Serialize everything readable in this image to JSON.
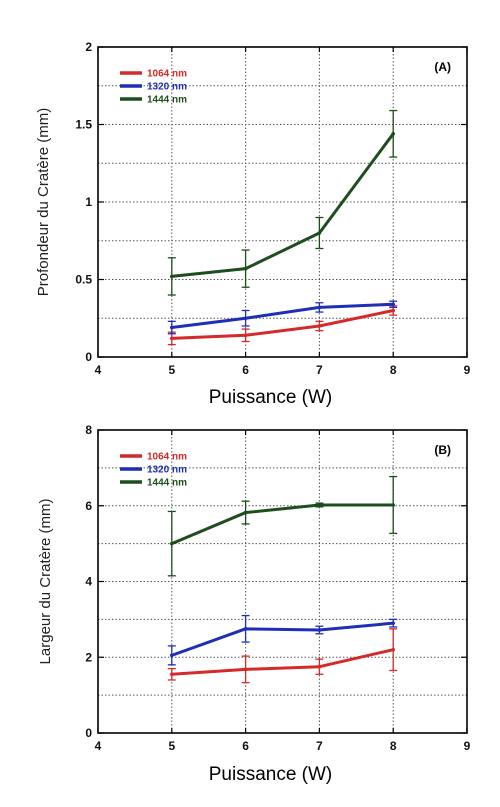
{
  "chart_data": [
    {
      "type": "line",
      "panel_label": "(A)",
      "xlabel": "Puissance (W)",
      "ylabel": "Profondeur du Cratère (mm)",
      "xlim": [
        4,
        9
      ],
      "ylim": [
        0,
        2
      ],
      "x_ticks": [
        "4",
        "5",
        "6",
        "7",
        "8",
        "9"
      ],
      "y_ticks": [
        "0",
        "0.5",
        "1",
        "1.5",
        "2"
      ],
      "grid": true,
      "legend_position": "top-left",
      "x": [
        5,
        6,
        7,
        8
      ],
      "series": [
        {
          "name": "1064 nm",
          "color": "#d42a2a",
          "values": [
            0.12,
            0.14,
            0.2,
            0.3
          ],
          "error": [
            0.04,
            0.04,
            0.03,
            0.03
          ]
        },
        {
          "name": "1320 nm",
          "color": "#1f2fb5",
          "values": [
            0.19,
            0.25,
            0.32,
            0.34
          ],
          "error": [
            0.04,
            0.05,
            0.03,
            0.02
          ]
        },
        {
          "name": "1444 nm",
          "color": "#1e4d1e",
          "values": [
            0.52,
            0.57,
            0.8,
            1.44
          ],
          "error": [
            0.12,
            0.12,
            0.1,
            0.15
          ]
        }
      ]
    },
    {
      "type": "line",
      "panel_label": "(B)",
      "xlabel": "Puissance (W)",
      "ylabel": "Largeur du Cratère (mm)",
      "xlim": [
        4,
        9
      ],
      "ylim": [
        0,
        8
      ],
      "x_ticks": [
        "4",
        "5",
        "6",
        "7",
        "8",
        "9"
      ],
      "y_ticks": [
        "0",
        "2",
        "4",
        "6",
        "8"
      ],
      "grid": true,
      "legend_position": "top-left",
      "x": [
        5,
        6,
        7,
        8
      ],
      "series": [
        {
          "name": "1064 nm",
          "color": "#d42a2a",
          "values": [
            1.55,
            1.68,
            1.75,
            2.2
          ],
          "error": [
            0.15,
            0.35,
            0.2,
            0.55
          ]
        },
        {
          "name": "1320 nm",
          "color": "#1f2fb5",
          "values": [
            2.05,
            2.75,
            2.72,
            2.9
          ],
          "error": [
            0.25,
            0.35,
            0.1,
            0.1
          ]
        },
        {
          "name": "1444 nm",
          "color": "#1e4d1e",
          "values": [
            5.0,
            5.82,
            6.02,
            6.02
          ],
          "error": [
            0.85,
            0.3,
            0.05,
            0.75
          ]
        }
      ]
    }
  ]
}
